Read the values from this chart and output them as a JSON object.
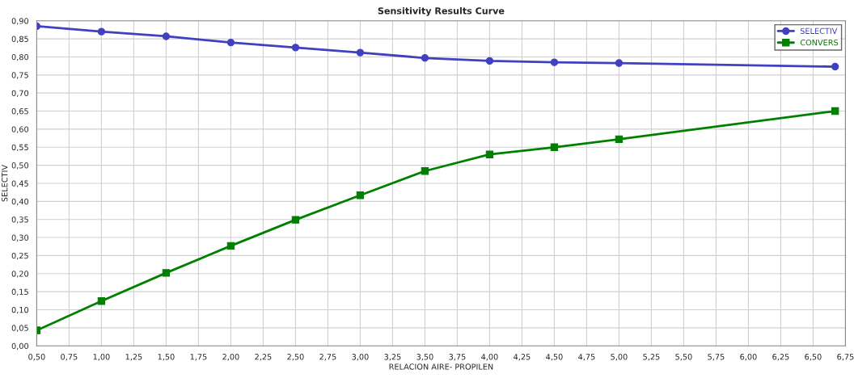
{
  "chart_data": {
    "type": "line",
    "title": "Sensitivity Results Curve",
    "xlabel": "RELACION AIRE- PROPILEN",
    "ylabel": "SELECTIV",
    "series": [
      {
        "name": "SELECTIV",
        "color": "#4040c0",
        "marker": "circle",
        "x": [
          0.5,
          1.0,
          1.5,
          2.0,
          2.5,
          3.0,
          3.5,
          4.0,
          4.5,
          5.0,
          6.67
        ],
        "values": [
          0.885,
          0.87,
          0.857,
          0.84,
          0.826,
          0.812,
          0.797,
          0.789,
          0.785,
          0.783,
          0.773
        ]
      },
      {
        "name": "CONVERS",
        "color": "#008000",
        "marker": "square",
        "x": [
          0.5,
          1.0,
          1.5,
          2.0,
          2.5,
          3.0,
          3.5,
          4.0,
          4.5,
          5.0,
          6.67
        ],
        "values": [
          0.043,
          0.124,
          0.202,
          0.277,
          0.349,
          0.417,
          0.484,
          0.53,
          0.55,
          0.572,
          0.65
        ]
      }
    ],
    "xlim": [
      0.5,
      6.75
    ],
    "ylim": [
      0.0,
      0.9
    ],
    "xticks": [
      {
        "value": 0.5,
        "label": "0,50"
      },
      {
        "value": 0.75,
        "label": "0,75"
      },
      {
        "value": 1.0,
        "label": "1,00"
      },
      {
        "value": 1.25,
        "label": "1,25"
      },
      {
        "value": 1.5,
        "label": "1,50"
      },
      {
        "value": 1.75,
        "label": "1,75"
      },
      {
        "value": 2.0,
        "label": "2,00"
      },
      {
        "value": 2.25,
        "label": "2,25"
      },
      {
        "value": 2.5,
        "label": "2,50"
      },
      {
        "value": 2.75,
        "label": "2,75"
      },
      {
        "value": 3.0,
        "label": "3,00"
      },
      {
        "value": 3.25,
        "label": "3,25"
      },
      {
        "value": 3.5,
        "label": "3,50"
      },
      {
        "value": 3.75,
        "label": "3,75"
      },
      {
        "value": 4.0,
        "label": "4,00"
      },
      {
        "value": 4.25,
        "label": "4,25"
      },
      {
        "value": 4.5,
        "label": "4,50"
      },
      {
        "value": 4.75,
        "label": "4,75"
      },
      {
        "value": 5.0,
        "label": "5,00"
      },
      {
        "value": 5.25,
        "label": "5,25"
      },
      {
        "value": 5.5,
        "label": "5,50"
      },
      {
        "value": 5.75,
        "label": "5,75"
      },
      {
        "value": 6.0,
        "label": "6,00"
      },
      {
        "value": 6.25,
        "label": "6,25"
      },
      {
        "value": 6.5,
        "label": "6,50"
      },
      {
        "value": 6.75,
        "label": "6,75"
      }
    ],
    "yticks": [
      {
        "value": 0.0,
        "label": "0,00"
      },
      {
        "value": 0.05,
        "label": "0,05"
      },
      {
        "value": 0.1,
        "label": "0,10"
      },
      {
        "value": 0.15,
        "label": "0,15"
      },
      {
        "value": 0.2,
        "label": "0,20"
      },
      {
        "value": 0.25,
        "label": "0,25"
      },
      {
        "value": 0.3,
        "label": "0,30"
      },
      {
        "value": 0.35,
        "label": "0,35"
      },
      {
        "value": 0.4,
        "label": "0,40"
      },
      {
        "value": 0.45,
        "label": "0,45"
      },
      {
        "value": 0.5,
        "label": "0,50"
      },
      {
        "value": 0.55,
        "label": "0,55"
      },
      {
        "value": 0.6,
        "label": "0,60"
      },
      {
        "value": 0.65,
        "label": "0,65"
      },
      {
        "value": 0.7,
        "label": "0,70"
      },
      {
        "value": 0.75,
        "label": "0,75"
      },
      {
        "value": 0.8,
        "label": "0,80"
      },
      {
        "value": 0.85,
        "label": "0,85"
      },
      {
        "value": 0.9,
        "label": "0,90"
      }
    ],
    "grid": true,
    "legend": "top right",
    "line_style": "solid"
  }
}
